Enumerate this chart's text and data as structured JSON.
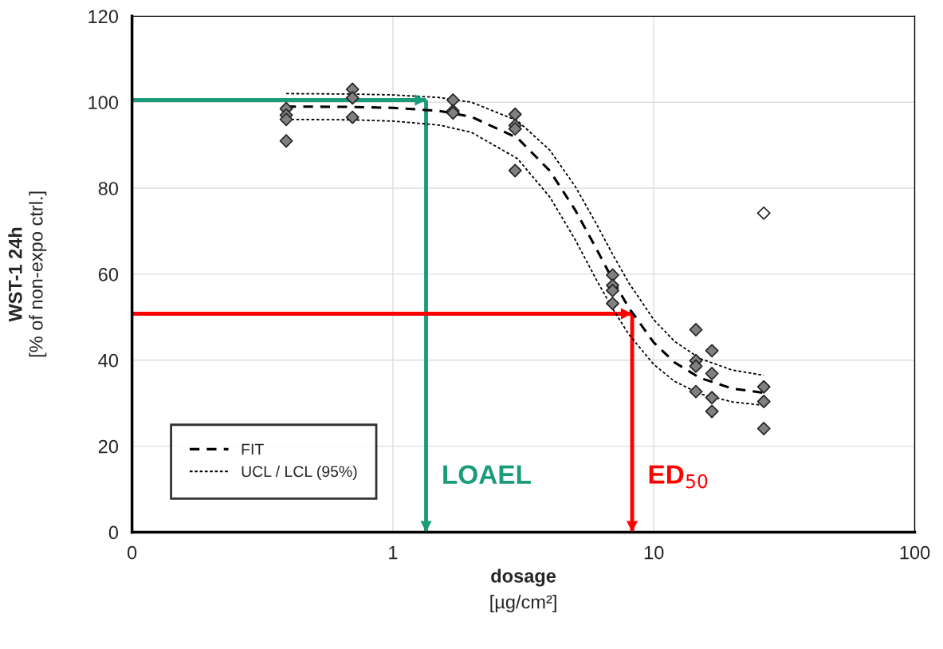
{
  "chart_data": {
    "type": "scatter",
    "xlabel": "dosage\n[µg/cm²]",
    "ylabel": "WST-1 24h\n[% of non-expo ctrl.]",
    "log": "x",
    "xlim": [
      0.1,
      100
    ],
    "xticks": [
      {
        "value": 0.1,
        "label": "0"
      },
      1,
      10,
      100
    ],
    "ylim": [
      0,
      120
    ],
    "yticks": [
      0,
      20,
      40,
      60,
      80,
      100,
      120
    ],
    "grid": true,
    "legend": "bottom left",
    "series": [
      {
        "color": "#808080",
        "marker": "diamond",
        "x": [
          0.39,
          0.39,
          0.39,
          0.39,
          0.7,
          0.7,
          0.7,
          1.7,
          1.7,
          1.7,
          2.94,
          2.94,
          2.94,
          2.94,
          6.95,
          6.95,
          6.95,
          6.95,
          14.5,
          14.5,
          14.5,
          14.5,
          16.7,
          16.7,
          16.7,
          16.7,
          26.4,
          26.4,
          26.4
        ],
        "values": [
          98.5,
          97,
          96,
          91,
          103,
          101,
          96.5,
          100.5,
          98,
          97.5,
          97.2,
          94.6,
          93.8,
          84.1,
          59.8,
          57.4,
          56.2,
          53.2,
          47.1,
          39.9,
          38.6,
          32.7,
          42.2,
          36.9,
          31.3,
          28.1,
          33.8,
          30.4,
          24.1
        ]
      },
      {
        "color": "#ffffff",
        "marker": "diamond",
        "x": [
          26.4
        ],
        "values": [
          74.2
        ]
      },
      {
        "type": "line",
        "name": "FIT",
        "color": "#000000",
        "line_style": "dashed",
        "x": [
          0.39,
          0.7,
          1,
          1.5,
          2,
          3,
          4,
          5,
          6,
          7,
          8,
          10,
          12,
          15,
          20,
          26.4
        ],
        "values": [
          99,
          98.9,
          98.7,
          98,
          96.6,
          91.7,
          84,
          74.9,
          66.1,
          58.4,
          52.3,
          44.1,
          39.5,
          35.9,
          33.4,
          32.4
        ]
      },
      {
        "type": "line",
        "name": "UCL / LCL (95%)",
        "color": "#000000",
        "line_style": "dotted",
        "x": [
          0.39,
          0.7,
          1,
          1.5,
          2,
          3,
          4,
          5,
          6,
          7,
          8,
          10,
          12,
          15,
          20,
          26.4
        ],
        "values": [
          102,
          101.9,
          101.7,
          101.1,
          100,
          95.7,
          88.8,
          80.4,
          71.9,
          64.3,
          58.1,
          49.4,
          44.4,
          40.4,
          37.7,
          36.5
        ]
      },
      {
        "type": "line",
        "color": "#000000",
        "line_style": "dotted",
        "x": [
          0.39,
          0.7,
          1,
          1.5,
          2,
          3,
          4,
          5,
          6,
          7,
          8,
          10,
          12,
          15,
          20,
          26.4
        ],
        "values": [
          96,
          95.9,
          95.6,
          94.7,
          93,
          86.9,
          77.9,
          68,
          58.9,
          51.7,
          46.1,
          39,
          35.1,
          32.2,
          30.3,
          29.5
        ]
      }
    ],
    "ref_lines": [
      {
        "axis": "y",
        "value": 100.5,
        "color": "#1a9c7b"
      },
      {
        "axis": "x",
        "value": 1.34,
        "label": "LOAEL",
        "color": "#1a9c7b"
      },
      {
        "axis": "y",
        "value": 50.8,
        "color": "#ff0000"
      },
      {
        "axis": "x",
        "value": 8.26,
        "label": "ED$_{50}$",
        "color": "#ff0000"
      }
    ]
  }
}
